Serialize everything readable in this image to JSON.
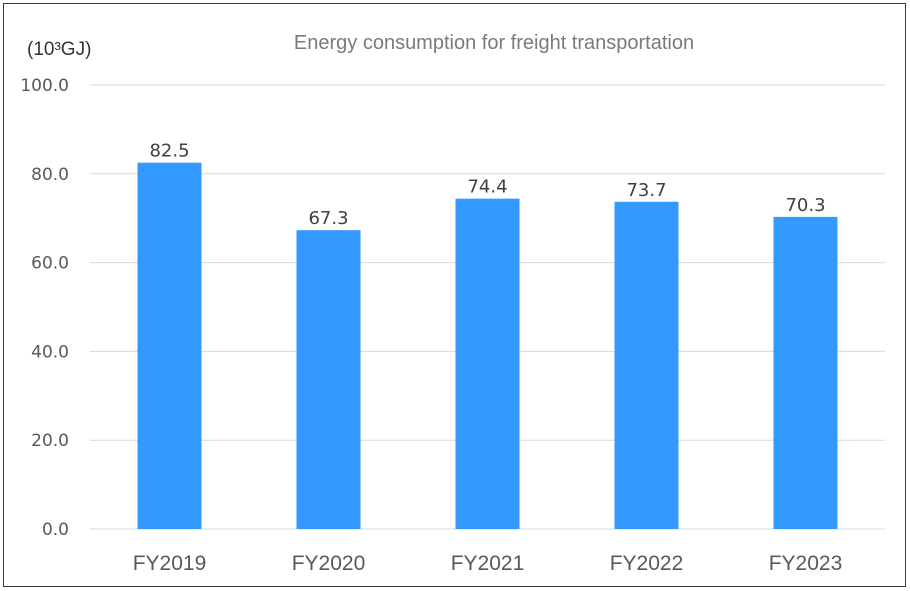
{
  "chart_data": {
    "type": "bar",
    "title": "Energy consumption for freight transportation",
    "unit_label": "(10³GJ)",
    "categories": [
      "FY2019",
      "FY2020",
      "FY2021",
      "FY2022",
      "FY2023"
    ],
    "values": [
      82.5,
      67.3,
      74.4,
      73.7,
      70.3
    ],
    "data_labels": [
      "82.5",
      "67.3",
      "74.4",
      "73.7",
      "70.3"
    ],
    "yticks": [
      "0.0",
      "20.0",
      "40.0",
      "60.0",
      "80.0",
      "100.0"
    ],
    "ylim": [
      0,
      100
    ],
    "grid": true,
    "bar_color": "#3399ff",
    "grid_color": "#d9d9d9"
  }
}
